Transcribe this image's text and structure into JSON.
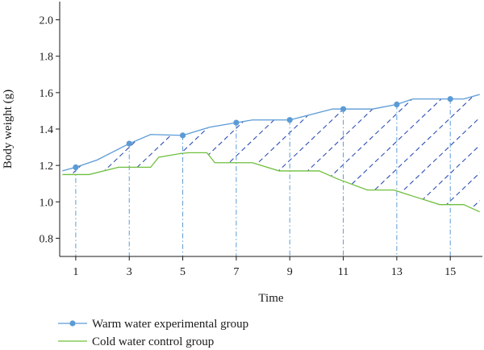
{
  "chart_data": {
    "type": "line",
    "xlabel": "Time",
    "ylabel": "Body weight (g)",
    "xlim": [
      0.4,
      16.2
    ],
    "ylim": [
      0.7,
      2.1
    ],
    "x_ticks": [
      1,
      3,
      5,
      7,
      9,
      11,
      13,
      15
    ],
    "y_ticks": [
      0.8,
      1.0,
      1.2,
      1.4,
      1.6,
      1.8,
      2.0
    ],
    "x_tick_labels": [
      "1",
      "3",
      "5",
      "7",
      "9",
      "11",
      "13",
      "15"
    ],
    "y_tick_labels": [
      "0.8",
      "1.0",
      "1.2",
      "1.4",
      "1.6",
      "1.8",
      "2.0"
    ],
    "grid": false,
    "legend_position": "bottom-left",
    "series": [
      {
        "name": "Warm water experimental group",
        "color": "#5b9bd5",
        "marker": "circle",
        "markers_at": [
          1,
          3,
          5,
          7,
          9,
          11,
          13,
          15
        ],
        "x": [
          0.5,
          1,
          1.8,
          3,
          3.8,
          5,
          6,
          7,
          7.6,
          8.8,
          9,
          10.6,
          11,
          12.1,
          13,
          13.6,
          15,
          15.5,
          16.1
        ],
        "y": [
          1.17,
          1.19,
          1.23,
          1.32,
          1.37,
          1.365,
          1.41,
          1.435,
          1.45,
          1.45,
          1.45,
          1.51,
          1.51,
          1.51,
          1.535,
          1.565,
          1.565,
          1.565,
          1.59
        ]
      },
      {
        "name": "Cold water control group",
        "color": "#6fbf3f",
        "marker": "none",
        "x": [
          0.5,
          1.5,
          2.6,
          3.8,
          4.1,
          4.9,
          5.2,
          5.9,
          6.2,
          7.6,
          8.6,
          10.1,
          10.8,
          11.9,
          12.9,
          13.2,
          14.6,
          15.5,
          16.1
        ],
        "y": [
          1.15,
          1.15,
          1.19,
          1.19,
          1.245,
          1.265,
          1.27,
          1.27,
          1.215,
          1.215,
          1.17,
          1.17,
          1.125,
          1.065,
          1.065,
          1.05,
          0.985,
          0.985,
          0.945
        ]
      }
    ],
    "drop_lines_at": [
      1,
      3,
      5,
      7,
      9,
      11,
      13,
      15
    ],
    "hatch_between_series": true,
    "hatch_color": "#2e4fb5",
    "axis_color": "#1a1a1a"
  }
}
